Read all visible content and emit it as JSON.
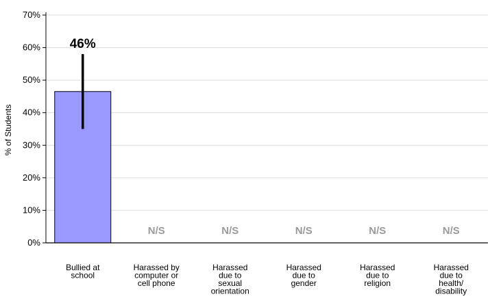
{
  "chart_data": {
    "type": "bar",
    "ylabel": "% of Students",
    "ylim": [
      0,
      70
    ],
    "yticks": [
      0,
      10,
      20,
      30,
      40,
      50,
      60,
      70
    ],
    "ytick_labels": [
      "0%",
      "10%",
      "20%",
      "30%",
      "40%",
      "50%",
      "60%",
      "70%"
    ],
    "grid": true,
    "categories": [
      [
        "Bullied at",
        "school"
      ],
      [
        "Harassed by",
        "computer or",
        "cell phone"
      ],
      [
        "Harassed",
        "due to",
        "sexual",
        "orientation"
      ],
      [
        "Harassed",
        "due to",
        "gender"
      ],
      [
        "Harassed",
        "due to",
        "religion"
      ],
      [
        "Harassed",
        "due to",
        "health/",
        "disability"
      ]
    ],
    "values": [
      46.5,
      null,
      null,
      null,
      null,
      null
    ],
    "error_bars": [
      [
        35,
        58
      ],
      null,
      null,
      null,
      null,
      null
    ],
    "data_labels": [
      "46%",
      "N/S",
      "N/S",
      "N/S",
      "N/S",
      "N/S"
    ],
    "bar_color": "#9999ff",
    "error_color": "#000000",
    "ns_color": "#9a9a9a"
  }
}
